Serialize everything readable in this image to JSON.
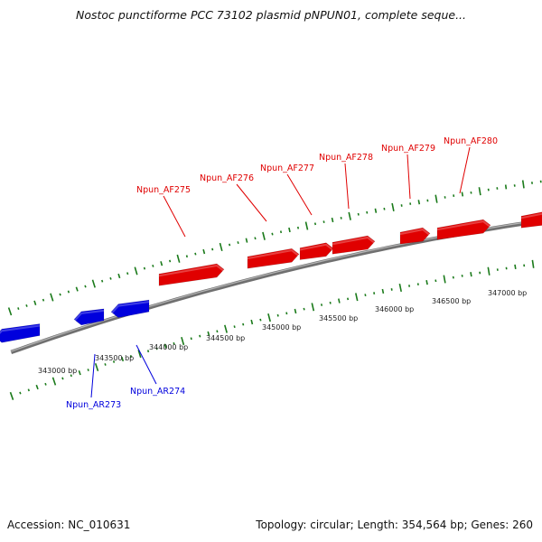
{
  "title": "Nostoc punctiforme PCC 73102 plasmid pNPUN01, complete seque...",
  "footer": {
    "accession": "Accession: NC_010631",
    "summary": "Topology: circular; Length: 354,564 bp; Genes: 260"
  },
  "colors": {
    "forward": "#e00000",
    "reverse": "#0000dd",
    "tick": "#1a7a1a",
    "backbone": "#888888"
  },
  "ticks": [
    {
      "label": "343000 bp",
      "bp": 343000
    },
    {
      "label": "343500 bp",
      "bp": 343500
    },
    {
      "label": "344000 bp",
      "bp": 344000
    },
    {
      "label": "344500 bp",
      "bp": 344500
    },
    {
      "label": "345000 bp",
      "bp": 345000
    },
    {
      "label": "345500 bp",
      "bp": 345500
    },
    {
      "label": "346000 bp",
      "bp": 346000
    },
    {
      "label": "346500 bp",
      "bp": 346500
    },
    {
      "label": "347000 bp",
      "bp": 347000
    }
  ],
  "genes": [
    {
      "name": "Npun_AR273",
      "strand": "reverse"
    },
    {
      "name": "Npun_AR274",
      "strand": "reverse"
    },
    {
      "name": "Npun_AF275",
      "strand": "forward"
    },
    {
      "name": "Npun_AF276",
      "strand": "forward"
    },
    {
      "name": "Npun_AF277",
      "strand": "forward"
    },
    {
      "name": "Npun_AF278",
      "strand": "forward"
    },
    {
      "name": "Npun_AF279",
      "strand": "forward"
    },
    {
      "name": "Npun_AF280",
      "strand": "forward"
    }
  ]
}
